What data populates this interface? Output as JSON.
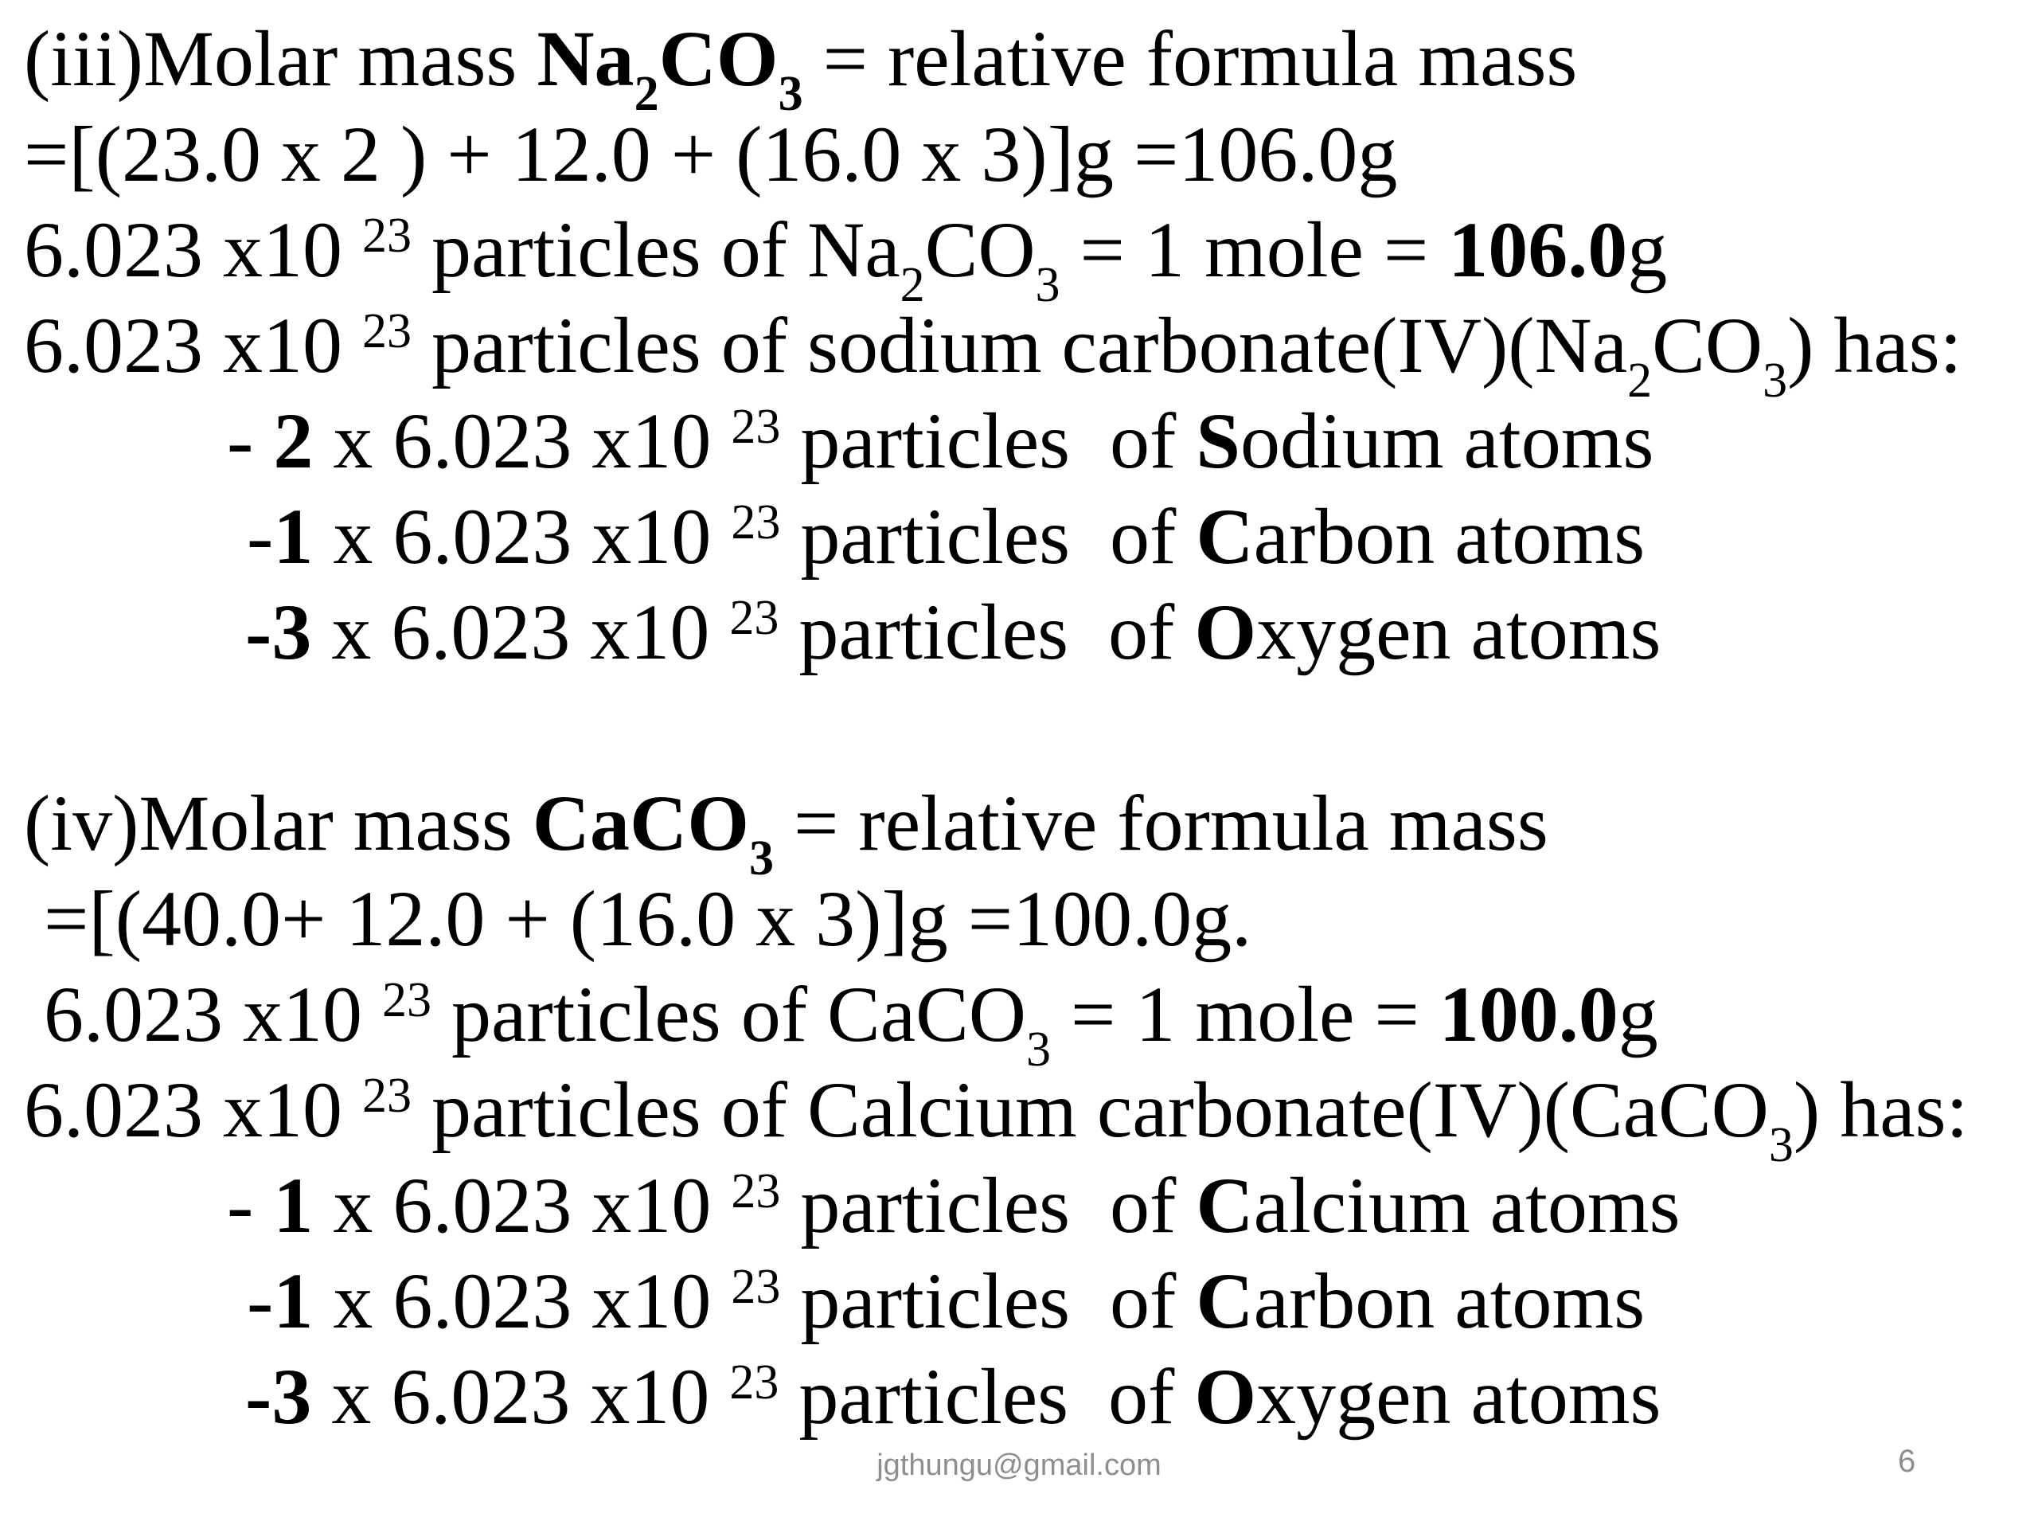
{
  "slide": {
    "background_color": "#ffffff",
    "text_color": "#000000",
    "footer": {
      "email": "jgthungu@gmail.com",
      "page_number": "6",
      "color": "#8e8e8e"
    },
    "lines": [
      {
        "indent": 0,
        "runs": [
          {
            "t": "(iii)Molar mass "
          },
          {
            "t": "Na",
            "b": true
          },
          {
            "t": "2",
            "b": true,
            "sub": true
          },
          {
            "t": "CO",
            "b": true
          },
          {
            "t": "3",
            "b": true,
            "sub": true
          },
          {
            "t": " = relative formula mass"
          }
        ]
      },
      {
        "indent": 0,
        "runs": [
          {
            "t": "=[(23.0 x 2 ) + 12.0 + (16.0 x 3)]g =106.0g"
          }
        ]
      },
      {
        "indent": 0,
        "runs": [
          {
            "t": "6.023 x10 "
          },
          {
            "t": "23",
            "sup": true
          },
          {
            "t": " particles of Na"
          },
          {
            "t": "2",
            "sub": true
          },
          {
            "t": "CO"
          },
          {
            "t": "3",
            "sub": true
          },
          {
            "t": " = 1 mole = "
          },
          {
            "t": "106.0",
            "b": true
          },
          {
            "t": "g"
          }
        ]
      },
      {
        "indent": 0,
        "runs": [
          {
            "t": "6.023 x10 "
          },
          {
            "t": "23",
            "sup": true
          },
          {
            "t": " particles of sodium carbonate(IV)(Na"
          },
          {
            "t": "2",
            "sub": true
          },
          {
            "t": "CO"
          },
          {
            "t": "3",
            "sub": true
          },
          {
            "t": ") has:"
          }
        ]
      },
      {
        "indent": 1,
        "runs": [
          {
            "t": "- "
          },
          {
            "t": "2",
            "b": true
          },
          {
            "t": " x 6.023 x10 "
          },
          {
            "t": "23",
            "sup": true
          },
          {
            "t": " particles  of "
          },
          {
            "t": "S",
            "b": true
          },
          {
            "t": "odium atoms"
          }
        ]
      },
      {
        "indent": 2,
        "runs": [
          {
            "t": "-"
          },
          {
            "t": "1",
            "b": true
          },
          {
            "t": " x 6.023 x10 "
          },
          {
            "t": "23",
            "sup": true
          },
          {
            "t": " particles  of "
          },
          {
            "t": "C",
            "b": true
          },
          {
            "t": "arbon atoms"
          }
        ]
      },
      {
        "indent": 3,
        "runs": [
          {
            "t": "-",
            "b": true
          },
          {
            "t": "3",
            "b": true
          },
          {
            "t": " x 6.023 x10 "
          },
          {
            "t": "23",
            "sup": true
          },
          {
            "t": " particles  of "
          },
          {
            "t": "O",
            "b": true
          },
          {
            "t": "xygen atoms"
          }
        ]
      },
      {
        "indent": 0,
        "runs": []
      },
      {
        "indent": 0,
        "runs": [
          {
            "t": "(iv)Molar mass "
          },
          {
            "t": "CaCO",
            "b": true
          },
          {
            "t": "3",
            "b": true,
            "sub": true
          },
          {
            "t": " = relative formula mass"
          }
        ]
      },
      {
        "indent": 0,
        "runs": [
          {
            "t": " =[(40.0+ 12.0 + (16.0 x 3)]g =100.0g."
          }
        ]
      },
      {
        "indent": 0,
        "runs": [
          {
            "t": " 6.023 x10 "
          },
          {
            "t": "23",
            "sup": true
          },
          {
            "t": " particles of CaCO"
          },
          {
            "t": "3",
            "sub": true
          },
          {
            "t": " = 1 mole = "
          },
          {
            "t": "100.0",
            "b": true
          },
          {
            "t": "g"
          }
        ]
      },
      {
        "indent": 0,
        "runs": [
          {
            "t": "6.023 x10 "
          },
          {
            "t": "23",
            "sup": true
          },
          {
            "t": " particles of Calcium carbonate(IV)(CaCO"
          },
          {
            "t": "3",
            "sub": true
          },
          {
            "t": ") has:"
          }
        ]
      },
      {
        "indent": 1,
        "runs": [
          {
            "t": "- "
          },
          {
            "t": "1",
            "b": true
          },
          {
            "t": " x 6.023 x10 "
          },
          {
            "t": "23",
            "sup": true
          },
          {
            "t": " particles  of "
          },
          {
            "t": "C",
            "b": true
          },
          {
            "t": "alcium atoms"
          }
        ]
      },
      {
        "indent": 2,
        "runs": [
          {
            "t": "-"
          },
          {
            "t": "1",
            "b": true
          },
          {
            "t": " x 6.023 x10 "
          },
          {
            "t": "23",
            "sup": true
          },
          {
            "t": " particles  of "
          },
          {
            "t": "C",
            "b": true
          },
          {
            "t": "arbon atoms"
          }
        ]
      },
      {
        "indent": 3,
        "runs": [
          {
            "t": "-",
            "b": true
          },
          {
            "t": "3",
            "b": true
          },
          {
            "t": " x 6.023 x10 "
          },
          {
            "t": "23",
            "sup": true
          },
          {
            "t": " particles  of "
          },
          {
            "t": "O",
            "b": true
          },
          {
            "t": "xygen atoms"
          }
        ]
      }
    ]
  }
}
